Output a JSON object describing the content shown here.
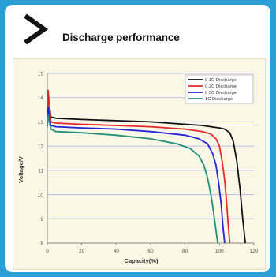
{
  "heading": "Discharge performance",
  "chart_data": {
    "type": "line",
    "xlabel": "Capacity(%)",
    "ylabel": "Voltage/V",
    "xlim": [
      0,
      120
    ],
    "ylim": [
      8,
      15
    ],
    "x_ticks": [
      "0",
      "20",
      "40",
      "60",
      "80",
      "100",
      "120"
    ],
    "y_ticks": [
      "8",
      "9",
      "10",
      "11",
      "12",
      "13",
      "14",
      "15"
    ],
    "grid": "horizontal",
    "legend_position": "top-right",
    "series": [
      {
        "name": "0.1C Discharge",
        "color": "#111111",
        "x": [
          0,
          0.5,
          2,
          5,
          20,
          40,
          60,
          80,
          90,
          95,
          100,
          103,
          106,
          108,
          110,
          112,
          113.5,
          115
        ],
        "y": [
          13.4,
          14.1,
          13.2,
          13.15,
          13.1,
          13.05,
          13.0,
          12.9,
          12.85,
          12.8,
          12.75,
          12.7,
          12.55,
          12.2,
          11.4,
          10.2,
          9.0,
          8.0
        ]
      },
      {
        "name": "0.2C Discharge",
        "color": "#e8262a",
        "x": [
          0,
          0.5,
          2,
          5,
          20,
          40,
          60,
          80,
          90,
          95,
          98,
          100,
          101.5,
          103,
          104,
          105,
          106
        ],
        "y": [
          13.2,
          14.3,
          13.0,
          12.95,
          12.9,
          12.85,
          12.8,
          12.7,
          12.6,
          12.5,
          12.3,
          12.0,
          11.4,
          10.6,
          9.8,
          8.8,
          8.0
        ]
      },
      {
        "name": "0.5C Discharge",
        "color": "#2222dd",
        "x": [
          0,
          0.5,
          2,
          5,
          20,
          40,
          60,
          80,
          88,
          93,
          96,
          98,
          99.5,
          101,
          102,
          103
        ],
        "y": [
          13.0,
          13.6,
          12.85,
          12.8,
          12.75,
          12.7,
          12.6,
          12.45,
          12.3,
          12.1,
          11.7,
          11.2,
          10.5,
          9.6,
          8.7,
          8.0
        ]
      },
      {
        "name": "1C Discharge",
        "color": "#1f8f7a",
        "x": [
          0,
          0.5,
          2,
          5,
          20,
          40,
          60,
          75,
          83,
          88,
          91,
          93,
          95,
          96.5,
          98,
          99
        ],
        "y": [
          12.8,
          13.3,
          12.7,
          12.6,
          12.55,
          12.45,
          12.3,
          12.1,
          11.9,
          11.6,
          11.2,
          10.7,
          10.0,
          9.3,
          8.5,
          8.0
        ]
      }
    ]
  }
}
